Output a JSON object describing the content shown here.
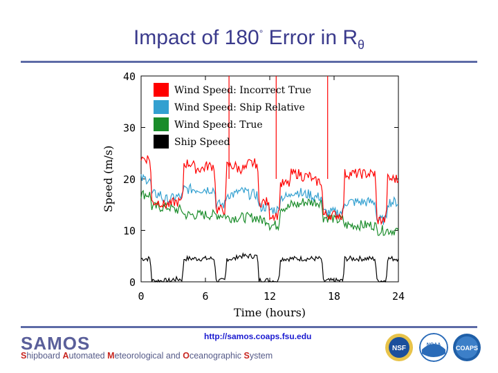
{
  "page": {
    "title_prefix": "Impact of 180",
    "degree": "°",
    "title_middle": " Error in R",
    "title_sub": "θ",
    "url": "http://samos.coaps.fsu.edu",
    "footer": {
      "brand": "SAMOS",
      "subtitle": [
        {
          "initial": "S",
          "rest": "hipboard "
        },
        {
          "initial": "A",
          "rest": "utomated "
        },
        {
          "initial": "M",
          "rest": "eteorological and "
        },
        {
          "initial": "O",
          "rest": "ceanographic "
        },
        {
          "initial": "S",
          "rest": "ystem"
        }
      ]
    },
    "logos": [
      {
        "name": "nsf-logo",
        "label": "NSF",
        "color": "#1b4f9c"
      },
      {
        "name": "noaa-logo",
        "label": "NOAA",
        "color": "#2a6bb8"
      },
      {
        "name": "coaps-logo",
        "label": "COAPS",
        "color": "#1f5fa8"
      }
    ]
  },
  "chart_data": {
    "type": "line",
    "xlabel": "Time (hours)",
    "ylabel": "Speed (m/s)",
    "xlim": [
      0,
      24
    ],
    "ylim": [
      0,
      40
    ],
    "xticks": [
      0,
      6,
      12,
      18,
      24
    ],
    "yticks": [
      0,
      10,
      20,
      30,
      40
    ],
    "legend_position": "top-left",
    "series": [
      {
        "name": "Wind Speed: Incorrect True",
        "color": "#ff0000",
        "x": [
          0,
          1,
          2,
          3,
          4,
          5,
          6,
          7,
          8,
          9,
          10,
          11,
          12,
          13,
          14,
          15,
          16,
          17,
          18,
          19,
          20,
          21,
          22,
          23,
          24
        ],
        "y": [
          24,
          15.5,
          15,
          15.5,
          23,
          22,
          22.5,
          14,
          22.5,
          22,
          23,
          15.5,
          13,
          19,
          21,
          20.5,
          19.5,
          13,
          13,
          21,
          21,
          21,
          12,
          20,
          19.5
        ]
      },
      {
        "name": "Wind Speed: Ship Relative",
        "color": "#33a0d0",
        "x": [
          0,
          1,
          2,
          3,
          4,
          5,
          6,
          7,
          8,
          9,
          10,
          11,
          12,
          13,
          14,
          15,
          16,
          17,
          18,
          19,
          20,
          21,
          22,
          23,
          24
        ],
        "y": [
          20,
          17,
          16,
          16.5,
          18,
          18,
          18,
          15,
          17,
          17.5,
          17,
          14.5,
          14,
          16.5,
          17.5,
          17,
          16.5,
          13.5,
          13.5,
          15.5,
          15.5,
          15.5,
          12,
          15.5,
          15
        ]
      },
      {
        "name": "Wind Speed: True",
        "color": "#1a8c2a",
        "x": [
          0,
          1,
          2,
          3,
          4,
          5,
          6,
          7,
          8,
          9,
          10,
          11,
          12,
          13,
          14,
          15,
          16,
          17,
          18,
          19,
          20,
          21,
          22,
          23,
          24
        ],
        "y": [
          17,
          14.5,
          14.5,
          14,
          13,
          13,
          13,
          13,
          12.5,
          12.5,
          12.5,
          12,
          11,
          14.5,
          15,
          15.5,
          15.5,
          12.5,
          12,
          11,
          11,
          11,
          10,
          10,
          10
        ]
      },
      {
        "name": "Ship Speed",
        "color": "#000000",
        "x": [
          0,
          1,
          2,
          3,
          4,
          5,
          6,
          7,
          8,
          9,
          10,
          11,
          12,
          13,
          14,
          15,
          16,
          17,
          18,
          19,
          20,
          21,
          22,
          23,
          24
        ],
        "y": [
          4.5,
          0.2,
          0.2,
          0.5,
          4.5,
          4.5,
          4.5,
          0.2,
          4.5,
          5,
          5,
          0.3,
          0.2,
          4.5,
          4.5,
          4.5,
          4.5,
          0.2,
          0.2,
          4.5,
          4.5,
          4.5,
          0.2,
          4.5,
          4.5
        ]
      }
    ],
    "spikes": [
      {
        "series": "Wind Speed: Incorrect True",
        "x": 8.2,
        "y": 40
      },
      {
        "series": "Wind Speed: Incorrect True",
        "x": 12.6,
        "y": 40
      },
      {
        "series": "Wind Speed: Incorrect True",
        "x": 17.4,
        "y": 40
      }
    ]
  }
}
